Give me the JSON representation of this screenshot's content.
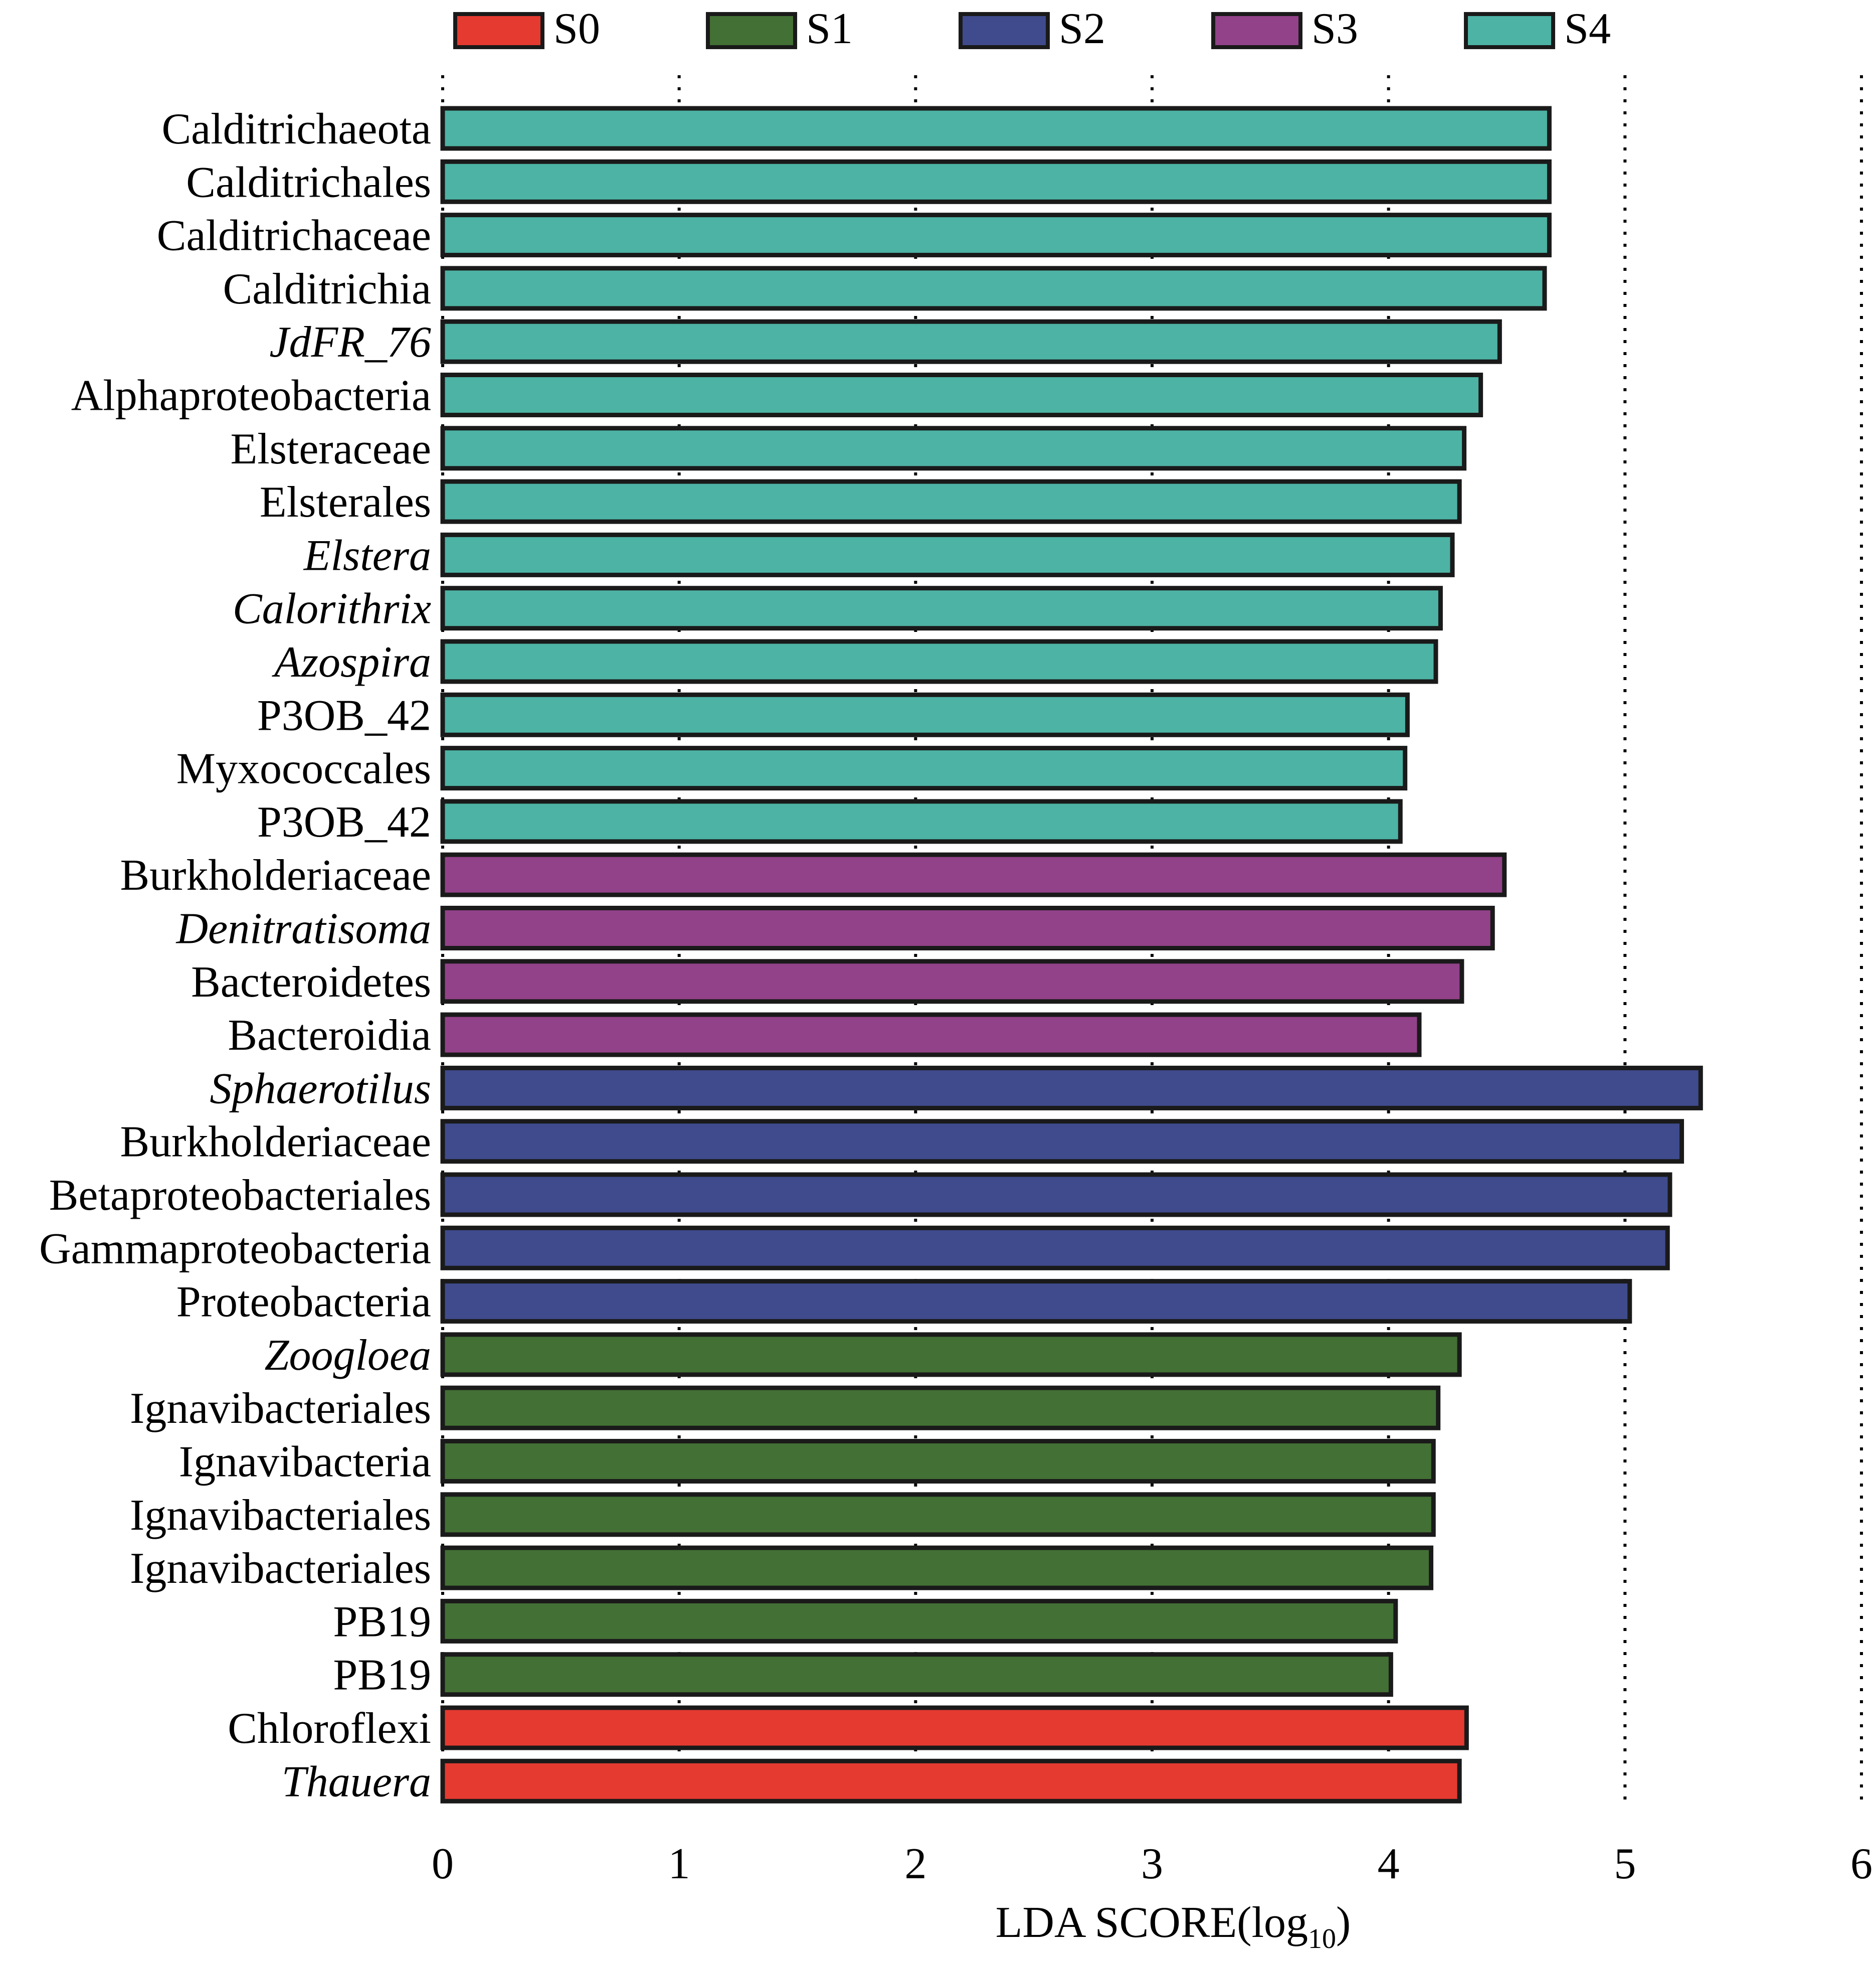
{
  "chart_data": {
    "type": "bar",
    "orientation": "horizontal",
    "xlabel": {
      "main": "LDA SCORE(log",
      "sub": "10",
      "close": ")"
    },
    "xlim": [
      0,
      6
    ],
    "xticks": [
      "0",
      "1",
      "2",
      "3",
      "4",
      "5",
      "6"
    ],
    "grid": "vertical dotted",
    "legend_position": "top",
    "legend": [
      {
        "name": "S0",
        "color": "#e53a30"
      },
      {
        "name": "S1",
        "color": "#437035"
      },
      {
        "name": "S2",
        "color": "#3f4b8c"
      },
      {
        "name": "S3",
        "color": "#924289"
      },
      {
        "name": "S4",
        "color": "#4db3a4"
      }
    ],
    "bars": [
      {
        "label": "Calditrichaeota",
        "value": 4.68,
        "group": "S4",
        "italic": false
      },
      {
        "label": "Calditrichales",
        "value": 4.68,
        "group": "S4",
        "italic": false
      },
      {
        "label": "Calditrichaceae",
        "value": 4.68,
        "group": "S4",
        "italic": false
      },
      {
        "label": "Calditrichia",
        "value": 4.66,
        "group": "S4",
        "italic": false
      },
      {
        "label": "JdFR_76",
        "value": 4.47,
        "group": "S4",
        "italic": true
      },
      {
        "label": "Alphaproteobacteria",
        "value": 4.39,
        "group": "S4",
        "italic": false
      },
      {
        "label": "Elsteraceae",
        "value": 4.32,
        "group": "S4",
        "italic": false
      },
      {
        "label": "Elsterales",
        "value": 4.3,
        "group": "S4",
        "italic": false
      },
      {
        "label": "Elstera",
        "value": 4.27,
        "group": "S4",
        "italic": true
      },
      {
        "label": "Calorithrix",
        "value": 4.22,
        "group": "S4",
        "italic": true
      },
      {
        "label": "Azospira",
        "value": 4.2,
        "group": "S4",
        "italic": true
      },
      {
        "label": "P3OB_42",
        "value": 4.08,
        "group": "S4",
        "italic": false
      },
      {
        "label": "Myxococcales",
        "value": 4.07,
        "group": "S4",
        "italic": false
      },
      {
        "label": "P3OB_42",
        "value": 4.05,
        "group": "S4",
        "italic": false
      },
      {
        "label": "Burkholderiaceae",
        "value": 4.49,
        "group": "S3",
        "italic": false
      },
      {
        "label": "Denitratisoma",
        "value": 4.44,
        "group": "S3",
        "italic": true
      },
      {
        "label": "Bacteroidetes",
        "value": 4.31,
        "group": "S3",
        "italic": false
      },
      {
        "label": "Bacteroidia",
        "value": 4.13,
        "group": "S3",
        "italic": false
      },
      {
        "label": "Sphaerotilus",
        "value": 5.32,
        "group": "S2",
        "italic": true
      },
      {
        "label": "Burkholderiaceae",
        "value": 5.24,
        "group": "S2",
        "italic": false
      },
      {
        "label": "Betaproteobacteriales",
        "value": 5.19,
        "group": "S2",
        "italic": false
      },
      {
        "label": "Gammaproteobacteria",
        "value": 5.18,
        "group": "S2",
        "italic": false
      },
      {
        "label": "Proteobacteria",
        "value": 5.02,
        "group": "S2",
        "italic": false
      },
      {
        "label": "Zoogloea",
        "value": 4.3,
        "group": "S1",
        "italic": true
      },
      {
        "label": "Ignavibacteriales",
        "value": 4.21,
        "group": "S1",
        "italic": false
      },
      {
        "label": "Ignavibacteria",
        "value": 4.19,
        "group": "S1",
        "italic": false
      },
      {
        "label": "Ignavibacteriales",
        "value": 4.19,
        "group": "S1",
        "italic": false
      },
      {
        "label": "Ignavibacteriales",
        "value": 4.18,
        "group": "S1",
        "italic": false
      },
      {
        "label": "PB19",
        "value": 4.03,
        "group": "S1",
        "italic": false
      },
      {
        "label": "PB19",
        "value": 4.01,
        "group": "S1",
        "italic": false
      },
      {
        "label": "Chloroflexi",
        "value": 4.33,
        "group": "S0",
        "italic": false
      },
      {
        "label": "Thauera",
        "value": 4.3,
        "group": "S0",
        "italic": true
      }
    ]
  }
}
